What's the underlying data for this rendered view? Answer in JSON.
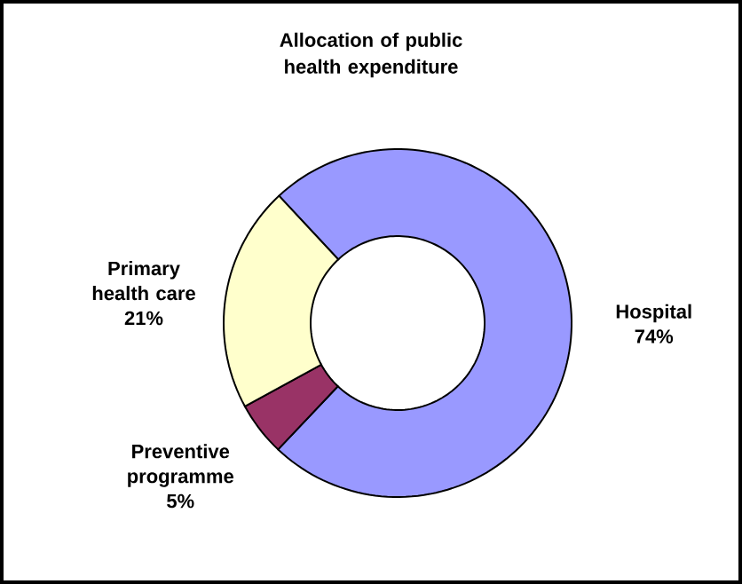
{
  "chart_data": {
    "type": "donut",
    "title": "Allocation of public health expenditure",
    "categories": [
      "Hospital",
      "Preventive programme",
      "Primary health care"
    ],
    "values": [
      74,
      5,
      21
    ],
    "colors": [
      "#9999ff",
      "#993366",
      "#ffffcc"
    ],
    "value_labels": [
      "74%",
      "5%",
      "21%"
    ]
  }
}
